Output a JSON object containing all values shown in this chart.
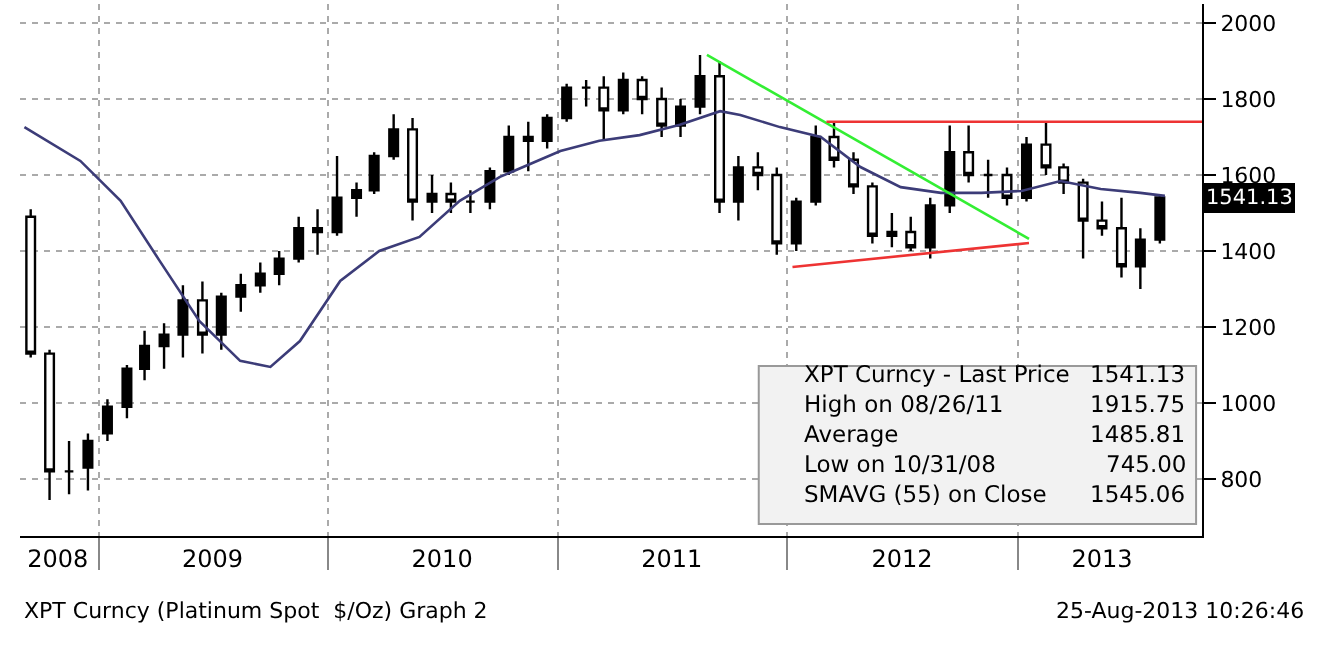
{
  "chart_data": {
    "type": "candlestick",
    "x": [
      "2008-09-15",
      "2008-10-15",
      "2008-11-15",
      "2008-12-15",
      "2009-01-15",
      "2009-02-15",
      "2009-03-15",
      "2009-04-15",
      "2009-05-15",
      "2009-06-15",
      "2009-07-15",
      "2009-08-15",
      "2009-09-15",
      "2009-10-15",
      "2009-11-15",
      "2009-12-15",
      "2010-01-15",
      "2010-02-15",
      "2010-03-15",
      "2010-04-15",
      "2010-05-15",
      "2010-06-15",
      "2010-07-15",
      "2010-08-15",
      "2010-09-15",
      "2010-10-15",
      "2010-11-15",
      "2010-12-15",
      "2011-01-15",
      "2011-02-15",
      "2011-03-15",
      "2011-04-15",
      "2011-05-15",
      "2011-06-15",
      "2011-07-15",
      "2011-08-15",
      "2011-09-15",
      "2011-10-15",
      "2011-11-15",
      "2011-12-15",
      "2012-01-15",
      "2012-02-15",
      "2012-03-15",
      "2012-04-15",
      "2012-05-15",
      "2012-06-15",
      "2012-07-15",
      "2012-08-15",
      "2012-09-15",
      "2012-10-15",
      "2012-11-15",
      "2012-12-15",
      "2013-01-15",
      "2013-02-15",
      "2013-03-15",
      "2013-04-15",
      "2013-05-15",
      "2013-06-15",
      "2013-07-15",
      "2013-08-15"
    ],
    "ohlc": [
      [
        1490,
        1510,
        1120,
        1130
      ],
      [
        1130,
        1140,
        745,
        820
      ],
      [
        820,
        900,
        760,
        820
      ],
      [
        830,
        920,
        770,
        900
      ],
      [
        920,
        1010,
        900,
        990
      ],
      [
        990,
        1100,
        960,
        1090
      ],
      [
        1090,
        1190,
        1060,
        1150
      ],
      [
        1150,
        1210,
        1090,
        1180
      ],
      [
        1180,
        1310,
        1120,
        1270
      ],
      [
        1270,
        1320,
        1130,
        1180
      ],
      [
        1180,
        1290,
        1140,
        1280
      ],
      [
        1280,
        1340,
        1240,
        1310
      ],
      [
        1310,
        1370,
        1290,
        1340
      ],
      [
        1340,
        1400,
        1310,
        1380
      ],
      [
        1380,
        1490,
        1370,
        1460
      ],
      [
        1460,
        1510,
        1390,
        1450
      ],
      [
        1450,
        1650,
        1440,
        1540
      ],
      [
        1540,
        1580,
        1490,
        1560
      ],
      [
        1560,
        1660,
        1550,
        1650
      ],
      [
        1650,
        1760,
        1640,
        1720
      ],
      [
        1720,
        1750,
        1480,
        1530
      ],
      [
        1530,
        1600,
        1500,
        1550
      ],
      [
        1550,
        1580,
        1500,
        1530
      ],
      [
        1530,
        1560,
        1500,
        1530
      ],
      [
        1530,
        1620,
        1510,
        1610
      ],
      [
        1610,
        1730,
        1600,
        1700
      ],
      [
        1700,
        1740,
        1610,
        1690
      ],
      [
        1690,
        1760,
        1670,
        1750
      ],
      [
        1750,
        1840,
        1740,
        1830
      ],
      [
        1830,
        1850,
        1780,
        1830
      ],
      [
        1830,
        1860,
        1690,
        1770
      ],
      [
        1770,
        1870,
        1760,
        1850
      ],
      [
        1850,
        1860,
        1760,
        1800
      ],
      [
        1800,
        1830,
        1700,
        1730
      ],
      [
        1730,
        1800,
        1700,
        1780
      ],
      [
        1780,
        1915.75,
        1760,
        1860
      ],
      [
        1860,
        1900,
        1500,
        1530
      ],
      [
        1530,
        1650,
        1480,
        1620
      ],
      [
        1620,
        1660,
        1560,
        1600
      ],
      [
        1600,
        1620,
        1390,
        1420
      ],
      [
        1420,
        1540,
        1400,
        1530
      ],
      [
        1530,
        1730,
        1520,
        1700
      ],
      [
        1700,
        1740,
        1620,
        1640
      ],
      [
        1640,
        1660,
        1550,
        1570
      ],
      [
        1570,
        1580,
        1420,
        1440
      ],
      [
        1440,
        1500,
        1410,
        1450
      ],
      [
        1450,
        1490,
        1400,
        1410
      ],
      [
        1410,
        1540,
        1380,
        1520
      ],
      [
        1520,
        1730,
        1500,
        1660
      ],
      [
        1660,
        1730,
        1580,
        1600
      ],
      [
        1600,
        1640,
        1540,
        1600
      ],
      [
        1600,
        1620,
        1520,
        1540
      ],
      [
        1540,
        1700,
        1530,
        1680
      ],
      [
        1680,
        1740,
        1600,
        1620
      ],
      [
        1620,
        1630,
        1550,
        1580
      ],
      [
        1580,
        1590,
        1380,
        1480
      ],
      [
        1480,
        1530,
        1440,
        1460
      ],
      [
        1460,
        1540,
        1330,
        1360
      ],
      [
        1360,
        1460,
        1300,
        1430
      ],
      [
        1430,
        1545,
        1420,
        1541.13
      ]
    ],
    "color": "#000000",
    "series": [
      {
        "type": "line",
        "color": "#3c3c78",
        "x": [
          "2008-09-05",
          "2008-12-03",
          "2009-02-05",
          "2009-04-08",
          "2009-06-10",
          "2009-08-14",
          "2009-10-01",
          "2009-11-17",
          "2010-01-20",
          "2010-03-23",
          "2010-05-26",
          "2010-07-29",
          "2010-10-01",
          "2011-01-05",
          "2011-03-08",
          "2011-05-11",
          "2011-07-14",
          "2011-09-16",
          "2011-10-18",
          "2011-12-20",
          "2012-02-23",
          "2012-04-26",
          "2012-06-29",
          "2012-09-01",
          "2012-11-04",
          "2013-01-07",
          "2013-03-10",
          "2013-05-13",
          "2013-07-15",
          "2013-08-23"
        ],
        "values": [
          1726,
          1637,
          1532,
          1374,
          1216,
          1111,
          1095,
          1163,
          1321,
          1400,
          1437,
          1532,
          1595,
          1663,
          1690,
          1705,
          1732,
          1768,
          1758,
          1726,
          1700,
          1621,
          1568,
          1553,
          1553,
          1558,
          1584,
          1563,
          1553,
          1545
        ]
      },
      {
        "type": "line",
        "color": "#33ee33",
        "x": [
          "2011-08-26",
          "2013-01-19"
        ],
        "values": [
          1916,
          1432
        ]
      },
      {
        "type": "line",
        "color": "#ee3333",
        "x": [
          "2012-01-09",
          "2013-01-19"
        ],
        "values": [
          1358,
          1421
        ]
      },
      {
        "type": "line",
        "color": "#ee3333",
        "x": [
          "2012-03-03",
          "2013-10-21"
        ],
        "values": [
          1740,
          1740
        ]
      }
    ],
    "xlim": [
      "2008-08-29",
      "2013-10-21"
    ],
    "xticks": [
      {
        "value": "2009-01-01",
        "label": null
      },
      {
        "value": "2010-01-01",
        "label": null
      },
      {
        "value": "2011-01-01",
        "label": null
      },
      {
        "value": "2012-01-01",
        "label": null
      },
      {
        "value": "2013-01-01",
        "label": null
      },
      {
        "value": "2008-10-28",
        "label": "2008"
      },
      {
        "value": "2009-07-01",
        "label": "2009"
      },
      {
        "value": "2010-07-01",
        "label": "2010"
      },
      {
        "value": "2011-07-01",
        "label": "2011"
      },
      {
        "value": "2012-07-01",
        "label": "2012"
      },
      {
        "value": "2013-05-15",
        "label": "2013"
      }
    ],
    "ylim": [
      650,
      2050
    ],
    "yticks": [
      800,
      1000,
      1200,
      1400,
      1600,
      1800,
      2000
    ],
    "grid": true,
    "annotations": [
      "XPT Curncy - Last Price",
      "1541.13",
      "High on 08/26/11",
      "1915.75",
      "Average",
      "1485.81",
      "Low on 10/31/08",
      "745.00",
      "SMAVG (55) on Close",
      "1545.06",
      "1541.13",
      "XPT Curncy (Platinum Spot  $/Oz) Graph 2",
      "25-Aug-2013 10:26:46"
    ]
  }
}
